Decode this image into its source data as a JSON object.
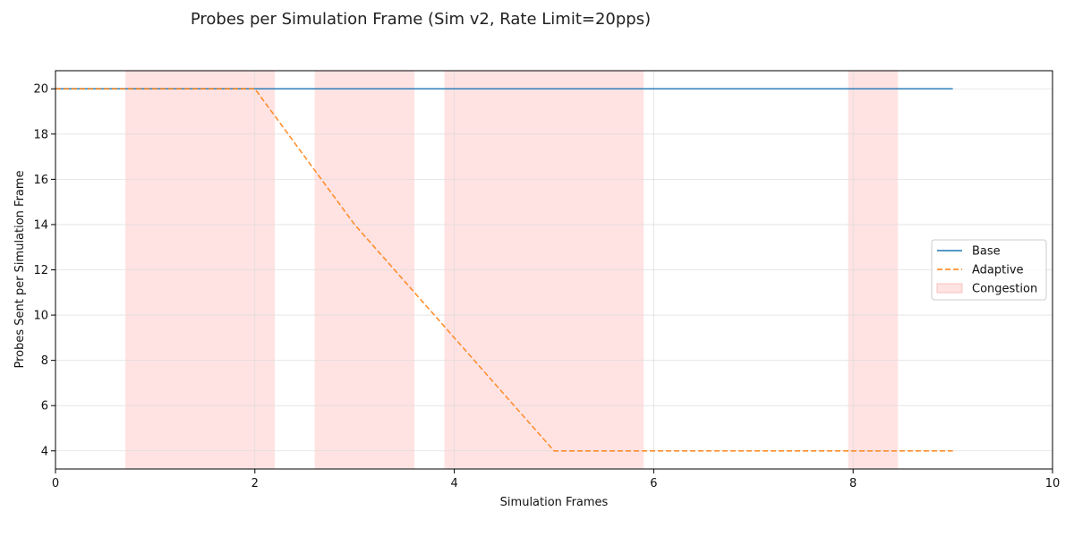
{
  "chart_data": {
    "type": "line",
    "title": "Probes per Simulation Frame (Sim v2, Rate Limit=20pps)",
    "xlabel": "Simulation Frames",
    "ylabel": "Probes Sent per Simulation Frame",
    "xlim": [
      0,
      10
    ],
    "ylim": [
      3.2,
      20.8
    ],
    "xticks": [
      0,
      2,
      4,
      6,
      8,
      10
    ],
    "yticks": [
      4,
      6,
      8,
      10,
      12,
      14,
      16,
      18,
      20
    ],
    "grid": true,
    "legend_position": "center-right",
    "series": [
      {
        "name": "Base",
        "color": "#1f77b4",
        "style": "solid",
        "x": [
          0,
          1,
          2,
          3,
          4,
          5,
          6,
          7,
          8,
          9
        ],
        "y": [
          20,
          20,
          20,
          20,
          20,
          20,
          20,
          20,
          20,
          20
        ]
      },
      {
        "name": "Adaptive",
        "color": "#ff7f0e",
        "style": "dashed",
        "x": [
          0,
          1,
          2,
          3,
          4,
          5,
          6,
          7,
          8,
          9
        ],
        "y": [
          20,
          20,
          20,
          14,
          9,
          4,
          4,
          4,
          4,
          4
        ]
      }
    ],
    "shaded_regions": {
      "name": "Congestion",
      "color": "#ffcccc",
      "ranges": [
        [
          0.7,
          2.2
        ],
        [
          2.6,
          3.6
        ],
        [
          3.9,
          5.9
        ],
        [
          7.95,
          8.45
        ]
      ]
    }
  }
}
